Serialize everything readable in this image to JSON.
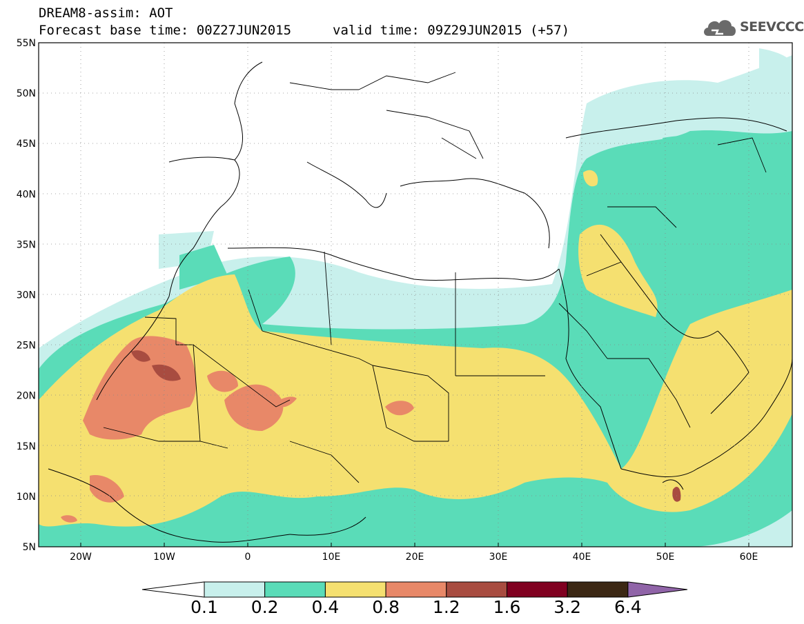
{
  "header": {
    "model_line": "DREAM8-assim: AOT",
    "base_time": "Forecast base time: 00Z27JUN2015",
    "valid_time": "valid time: 09Z29JUN2015 (+57)"
  },
  "logo": {
    "icon": "cloud-icon",
    "text": "SEEVCCC"
  },
  "map": {
    "lon_range": [
      -25,
      65
    ],
    "lat_range": [
      5,
      55
    ],
    "lat_ticks": [
      "55N",
      "50N",
      "45N",
      "40N",
      "35N",
      "30N",
      "25N",
      "20N",
      "15N",
      "10N",
      "5N"
    ],
    "lon_ticks": [
      "20W",
      "10W",
      "0",
      "10E",
      "20E",
      "30E",
      "40E",
      "50E",
      "60E"
    ]
  },
  "colorbar": {
    "labels": [
      "0.1",
      "0.2",
      "0.4",
      "0.8",
      "1.2",
      "1.6",
      "3.2",
      "6.4"
    ],
    "colors": [
      "#ffffff",
      "#c8f0ec",
      "#5adcb8",
      "#f5e070",
      "#e88868",
      "#a84c40",
      "#800020",
      "#3c2814",
      "#9064a8"
    ]
  }
}
